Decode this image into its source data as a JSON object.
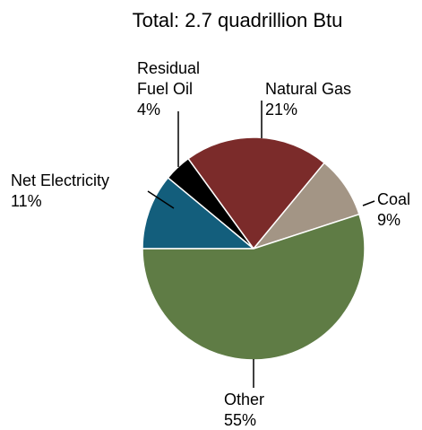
{
  "chart_data": {
    "type": "pie",
    "title": "Total: 2.7 quadrillion Btu",
    "categories": [
      "Net Electricity",
      "Residual Fuel Oil",
      "Natural Gas",
      "Coal",
      "Other"
    ],
    "values": [
      11,
      4,
      21,
      9,
      55
    ],
    "value_labels": [
      "11%",
      "4%",
      "21%",
      "9%",
      "55%"
    ],
    "colors": [
      "#135e7c",
      "#000000",
      "#7b2b2a",
      "#a39585",
      "#5f7c45"
    ]
  }
}
